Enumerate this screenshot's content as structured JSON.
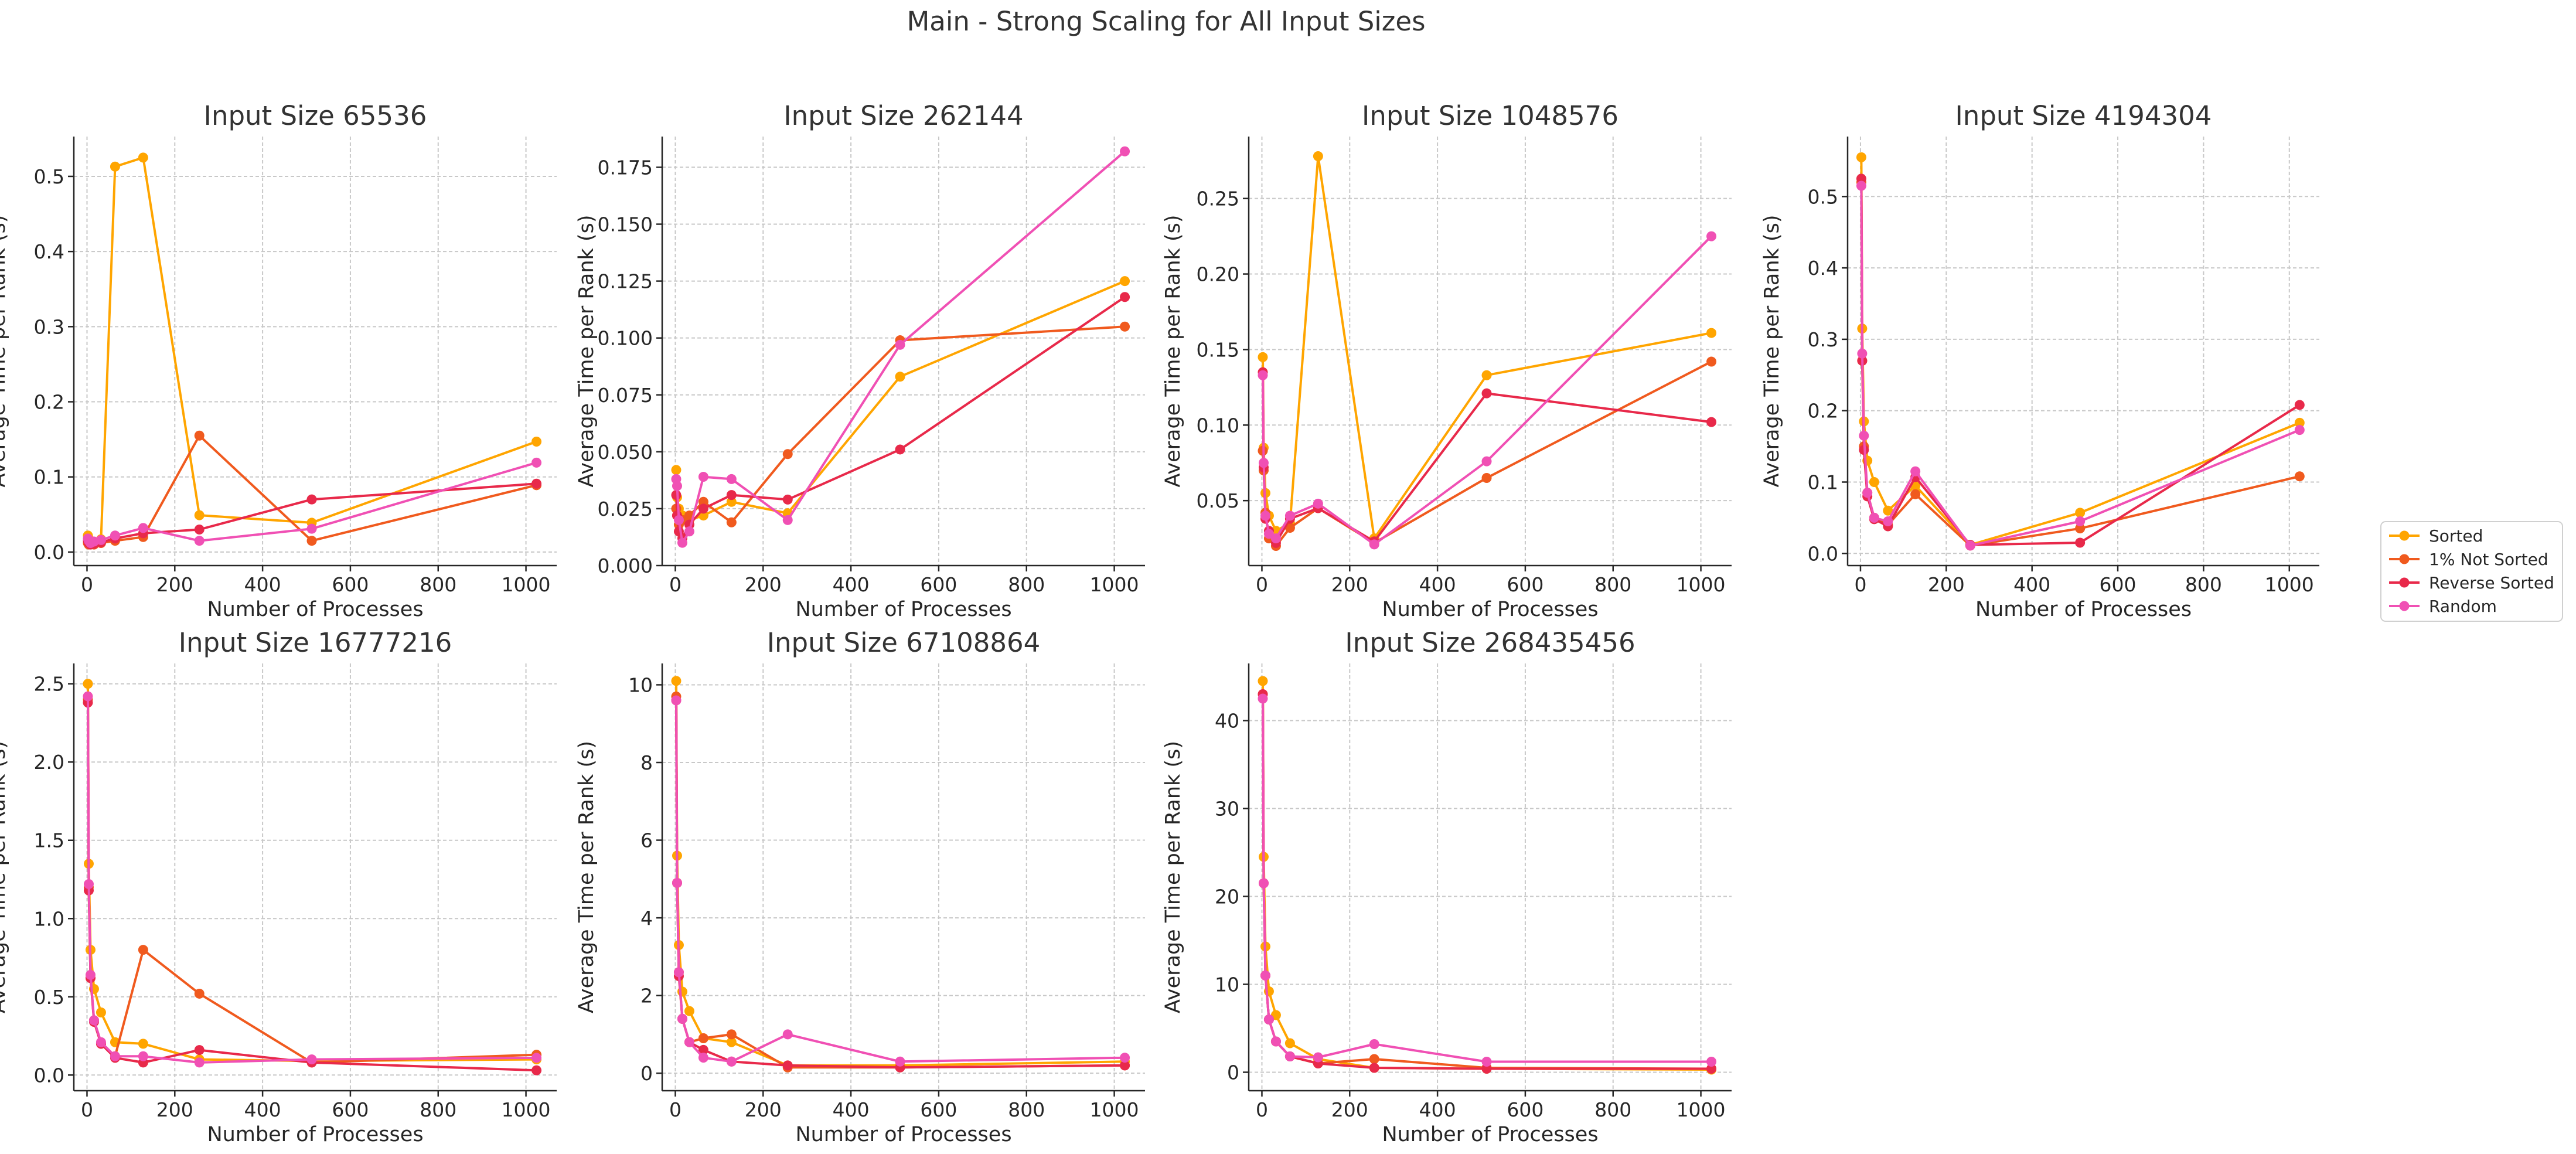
{
  "figure_title": "Main - Strong Scaling for All Input Sizes",
  "series_names": [
    "Sorted",
    "1% Not Sorted",
    "Reverse Sorted",
    "Random"
  ],
  "series_colors": [
    "#FFA500",
    "#F05A1E",
    "#E8294A",
    "#F050B4"
  ],
  "chart_data": [
    {
      "type": "line",
      "title": "Input Size 65536",
      "xlabel": "Number of Processes",
      "ylabel": "Average Time per Rank (s)",
      "xlim": [
        -30,
        1070
      ],
      "ylim": [
        -0.018,
        0.553
      ],
      "xticks": [
        0,
        200,
        400,
        600,
        800,
        1000
      ],
      "yticks": [
        0.0,
        0.1,
        0.2,
        0.3,
        0.4,
        0.5
      ],
      "ytick_labels": [
        "0.0",
        "0.1",
        "0.2",
        "0.3",
        "0.4",
        "0.5"
      ],
      "grid": true,
      "series": [
        {
          "name": "Sorted",
          "x": [
            2,
            4,
            8,
            16,
            32,
            64,
            128,
            256,
            512,
            1024
          ],
          "y": [
            0.022,
            0.018,
            0.015,
            0.013,
            0.017,
            0.513,
            0.525,
            0.049,
            0.039,
            0.147
          ]
        },
        {
          "name": "1% Not Sorted",
          "x": [
            2,
            4,
            8,
            16,
            32,
            64,
            128,
            256,
            512,
            1024
          ],
          "y": [
            0.012,
            0.01,
            0.011,
            0.01,
            0.012,
            0.015,
            0.02,
            0.155,
            0.015,
            0.089
          ]
        },
        {
          "name": "Reverse Sorted",
          "x": [
            2,
            4,
            8,
            16,
            32,
            64,
            128,
            256,
            512,
            1024
          ],
          "y": [
            0.015,
            0.012,
            0.01,
            0.011,
            0.013,
            0.018,
            0.025,
            0.03,
            0.07,
            0.091
          ]
        },
        {
          "name": "Random",
          "x": [
            2,
            4,
            8,
            16,
            32,
            64,
            128,
            256,
            512,
            1024
          ],
          "y": [
            0.018,
            0.015,
            0.012,
            0.014,
            0.016,
            0.022,
            0.032,
            0.015,
            0.031,
            0.119
          ]
        }
      ]
    },
    {
      "type": "line",
      "title": "Input Size 262144",
      "xlabel": "Number of Processes",
      "ylabel": "Average Time per Rank (s)",
      "xlim": [
        -30,
        1070
      ],
      "ylim": [
        0.0,
        0.1885
      ],
      "xticks": [
        0,
        200,
        400,
        600,
        800,
        1000
      ],
      "yticks": [
        0.0,
        0.025,
        0.05,
        0.075,
        0.1,
        0.125,
        0.15,
        0.175
      ],
      "ytick_labels": [
        "0.000",
        "0.025",
        "0.050",
        "0.075",
        "0.100",
        "0.125",
        "0.150",
        "0.175"
      ],
      "grid": true,
      "series": [
        {
          "name": "Sorted",
          "x": [
            2,
            4,
            8,
            16,
            32,
            64,
            128,
            256,
            512,
            1024
          ],
          "y": [
            0.042,
            0.03,
            0.025,
            0.022,
            0.02,
            0.022,
            0.028,
            0.023,
            0.083,
            0.125
          ]
        },
        {
          "name": "1% Not Sorted",
          "x": [
            2,
            4,
            8,
            16,
            32,
            64,
            128,
            256,
            512,
            1024
          ],
          "y": [
            0.025,
            0.022,
            0.018,
            0.02,
            0.022,
            0.028,
            0.019,
            0.049,
            0.099,
            0.105
          ]
        },
        {
          "name": "Reverse Sorted",
          "x": [
            2,
            4,
            8,
            16,
            32,
            64,
            128,
            256,
            512,
            1024
          ],
          "y": [
            0.031,
            0.022,
            0.015,
            0.012,
            0.018,
            0.025,
            0.031,
            0.029,
            0.051,
            0.118
          ]
        },
        {
          "name": "Random",
          "x": [
            2,
            4,
            8,
            16,
            32,
            64,
            128,
            256,
            512,
            1024
          ],
          "y": [
            0.038,
            0.035,
            0.02,
            0.01,
            0.015,
            0.039,
            0.038,
            0.02,
            0.097,
            0.182
          ]
        }
      ]
    },
    {
      "type": "line",
      "title": "Input Size 1048576",
      "xlabel": "Number of Processes",
      "ylabel": "Average Time per Rank (s)",
      "xlim": [
        -30,
        1070
      ],
      "ylim": [
        0.007,
        0.291
      ],
      "xticks": [
        0,
        200,
        400,
        600,
        800,
        1000
      ],
      "yticks": [
        0.05,
        0.1,
        0.15,
        0.2,
        0.25
      ],
      "ytick_labels": [
        "0.05",
        "0.10",
        "0.15",
        "0.20",
        "0.25"
      ],
      "grid": true,
      "series": [
        {
          "name": "Sorted",
          "x": [
            2,
            4,
            8,
            16,
            32,
            64,
            128,
            256,
            512,
            1024
          ],
          "y": [
            0.145,
            0.085,
            0.055,
            0.04,
            0.03,
            0.035,
            0.278,
            0.025,
            0.133,
            0.161
          ]
        },
        {
          "name": "1% Not Sorted",
          "x": [
            2,
            4,
            8,
            16,
            32,
            64,
            128,
            256,
            512,
            1024
          ],
          "y": [
            0.083,
            0.07,
            0.042,
            0.025,
            0.02,
            0.032,
            0.045,
            0.022,
            0.065,
            0.142
          ]
        },
        {
          "name": "Reverse Sorted",
          "x": [
            2,
            4,
            8,
            16,
            32,
            64,
            128,
            256,
            512,
            1024
          ],
          "y": [
            0.135,
            0.072,
            0.038,
            0.03,
            0.022,
            0.038,
            0.045,
            0.023,
            0.121,
            0.102
          ]
        },
        {
          "name": "Random",
          "x": [
            2,
            4,
            8,
            16,
            32,
            64,
            128,
            256,
            512,
            1024
          ],
          "y": [
            0.133,
            0.075,
            0.04,
            0.028,
            0.025,
            0.04,
            0.048,
            0.021,
            0.076,
            0.225
          ]
        }
      ]
    },
    {
      "type": "line",
      "title": "Input Size 4194304",
      "xlabel": "Number of Processes",
      "ylabel": "Average Time per Rank (s)",
      "xlim": [
        -30,
        1070
      ],
      "ylim": [
        -0.017,
        0.584
      ],
      "xticks": [
        0,
        200,
        400,
        600,
        800,
        1000
      ],
      "yticks": [
        0.0,
        0.1,
        0.2,
        0.3,
        0.4,
        0.5
      ],
      "ytick_labels": [
        "0.0",
        "0.1",
        "0.2",
        "0.3",
        "0.4",
        "0.5"
      ],
      "grid": true,
      "series": [
        {
          "name": "Sorted",
          "x": [
            2,
            4,
            8,
            16,
            32,
            64,
            128,
            256,
            512,
            1024
          ],
          "y": [
            0.555,
            0.315,
            0.185,
            0.13,
            0.1,
            0.06,
            0.095,
            0.012,
            0.057,
            0.183
          ]
        },
        {
          "name": "1% Not Sorted",
          "x": [
            2,
            4,
            8,
            16,
            32,
            64,
            128,
            256,
            512,
            1024
          ],
          "y": [
            0.52,
            0.27,
            0.15,
            0.085,
            0.05,
            0.04,
            0.083,
            0.011,
            0.035,
            0.108
          ]
        },
        {
          "name": "Reverse Sorted",
          "x": [
            2,
            4,
            8,
            16,
            32,
            64,
            128,
            256,
            512,
            1024
          ],
          "y": [
            0.525,
            0.27,
            0.145,
            0.08,
            0.048,
            0.038,
            0.107,
            0.012,
            0.015,
            0.208
          ]
        },
        {
          "name": "Random",
          "x": [
            2,
            4,
            8,
            16,
            32,
            64,
            128,
            256,
            512,
            1024
          ],
          "y": [
            0.515,
            0.28,
            0.165,
            0.085,
            0.05,
            0.045,
            0.115,
            0.011,
            0.045,
            0.173
          ]
        }
      ]
    },
    {
      "type": "line",
      "title": "Input Size 16777216",
      "xlabel": "Number of Processes",
      "ylabel": "Average Time per Rank (s)",
      "xlim": [
        -30,
        1070
      ],
      "ylim": [
        -0.1,
        2.63
      ],
      "xticks": [
        0,
        200,
        400,
        600,
        800,
        1000
      ],
      "yticks": [
        0.0,
        0.5,
        1.0,
        1.5,
        2.0,
        2.5
      ],
      "ytick_labels": [
        "0.0",
        "0.5",
        "1.0",
        "1.5",
        "2.0",
        "2.5"
      ],
      "grid": true,
      "series": [
        {
          "name": "Sorted",
          "x": [
            2,
            4,
            8,
            16,
            32,
            64,
            128,
            256,
            512,
            1024
          ],
          "y": [
            2.5,
            1.35,
            0.8,
            0.55,
            0.4,
            0.21,
            0.2,
            0.1,
            0.09,
            0.1
          ]
        },
        {
          "name": "1% Not Sorted",
          "x": [
            2,
            4,
            8,
            16,
            32,
            64,
            128,
            256,
            512,
            1024
          ],
          "y": [
            2.4,
            1.2,
            0.62,
            0.35,
            0.2,
            0.12,
            0.8,
            0.52,
            0.08,
            0.13
          ]
        },
        {
          "name": "Reverse Sorted",
          "x": [
            2,
            4,
            8,
            16,
            32,
            64,
            128,
            256,
            512,
            1024
          ],
          "y": [
            2.38,
            1.18,
            0.62,
            0.34,
            0.2,
            0.11,
            0.08,
            0.16,
            0.08,
            0.03
          ]
        },
        {
          "name": "Random",
          "x": [
            2,
            4,
            8,
            16,
            32,
            64,
            128,
            256,
            512,
            1024
          ],
          "y": [
            2.42,
            1.22,
            0.64,
            0.35,
            0.21,
            0.12,
            0.12,
            0.08,
            0.1,
            0.11
          ]
        }
      ]
    },
    {
      "type": "line",
      "title": "Input Size 67108864",
      "xlabel": "Number of Processes",
      "ylabel": "Average Time per Rank (s)",
      "xlim": [
        -30,
        1070
      ],
      "ylim": [
        -0.45,
        10.55
      ],
      "xticks": [
        0,
        200,
        400,
        600,
        800,
        1000
      ],
      "yticks": [
        0,
        2,
        4,
        6,
        8,
        10
      ],
      "ytick_labels": [
        "0",
        "2",
        "4",
        "6",
        "8",
        "10"
      ],
      "grid": true,
      "series": [
        {
          "name": "Sorted",
          "x": [
            2,
            4,
            8,
            16,
            32,
            64,
            128,
            256,
            512,
            1024
          ],
          "y": [
            10.1,
            5.6,
            3.3,
            2.1,
            1.6,
            0.9,
            0.8,
            0.2,
            0.2,
            0.3
          ]
        },
        {
          "name": "1% Not Sorted",
          "x": [
            2,
            4,
            8,
            16,
            32,
            64,
            128,
            256,
            512,
            1024
          ],
          "y": [
            9.7,
            4.9,
            2.6,
            1.4,
            0.8,
            0.9,
            1.0,
            0.15,
            0.15,
            0.2
          ]
        },
        {
          "name": "Reverse Sorted",
          "x": [
            2,
            4,
            8,
            16,
            32,
            64,
            128,
            256,
            512,
            1024
          ],
          "y": [
            9.6,
            4.9,
            2.5,
            1.4,
            0.8,
            0.6,
            0.3,
            0.2,
            0.15,
            0.2
          ]
        },
        {
          "name": "Random",
          "x": [
            2,
            4,
            8,
            16,
            32,
            64,
            128,
            256,
            512,
            1024
          ],
          "y": [
            9.6,
            4.9,
            2.6,
            1.4,
            0.8,
            0.4,
            0.3,
            1.0,
            0.3,
            0.4
          ]
        }
      ]
    },
    {
      "type": "line",
      "title": "Input Size 268435456",
      "xlabel": "Number of Processes",
      "ylabel": "Average Time per Rank (s)",
      "xlim": [
        -30,
        1070
      ],
      "ylim": [
        -2.1,
        46.5
      ],
      "xticks": [
        0,
        200,
        400,
        600,
        800,
        1000
      ],
      "yticks": [
        0,
        10,
        20,
        30,
        40
      ],
      "ytick_labels": [
        "0",
        "10",
        "20",
        "30",
        "40"
      ],
      "grid": true,
      "series": [
        {
          "name": "Sorted",
          "x": [
            2,
            4,
            8,
            16,
            32,
            64,
            128,
            256,
            512,
            1024
          ],
          "y": [
            44.5,
            24.5,
            14.3,
            9.2,
            6.5,
            3.3,
            1.5,
            0.5,
            0.4,
            0.3
          ]
        },
        {
          "name": "1% Not Sorted",
          "x": [
            2,
            4,
            8,
            16,
            32,
            64,
            128,
            256,
            512,
            1024
          ],
          "y": [
            43.0,
            21.5,
            11.0,
            6.0,
            3.5,
            1.8,
            1.0,
            1.5,
            0.5,
            0.4
          ]
        },
        {
          "name": "Reverse Sorted",
          "x": [
            2,
            4,
            8,
            16,
            32,
            64,
            128,
            256,
            512,
            1024
          ],
          "y": [
            43.0,
            21.5,
            11.0,
            6.0,
            3.5,
            1.8,
            1.0,
            0.5,
            0.4,
            0.4
          ]
        },
        {
          "name": "Random",
          "x": [
            2,
            4,
            8,
            16,
            32,
            64,
            128,
            256,
            512,
            1024
          ],
          "y": [
            42.5,
            21.5,
            11.0,
            6.0,
            3.5,
            1.8,
            1.7,
            3.2,
            1.2,
            1.2
          ]
        }
      ]
    }
  ]
}
